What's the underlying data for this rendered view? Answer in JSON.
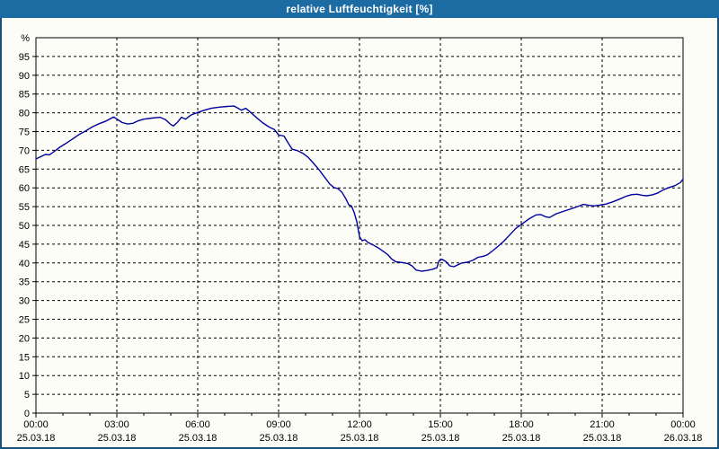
{
  "window": {
    "title": "relative Luftfeuchtigkeit [%]",
    "title_bar_color": "#1d6ba3",
    "border_color": "#17517c",
    "background_color": "#fcfdf7"
  },
  "chart_data": {
    "type": "line",
    "title": "relative Luftfeuchtigkeit [%]",
    "ylabel": "%",
    "ylim": [
      0,
      100
    ],
    "y_tick_step": 5,
    "y_tick_labels": [
      "0",
      "5",
      "10",
      "15",
      "20",
      "25",
      "30",
      "35",
      "40",
      "45",
      "50",
      "55",
      "60",
      "65",
      "70",
      "75",
      "80",
      "85",
      "90",
      "95"
    ],
    "y_top_label": "%",
    "grid": "dashed",
    "grid_color": "#000000",
    "line_color": "#0000a0",
    "x_minor_tick_every_hours": 1,
    "x_major_ticks": [
      {
        "hour": 0,
        "time": "00:00",
        "date": "25.03.18"
      },
      {
        "hour": 3,
        "time": "03:00",
        "date": "25.03.18"
      },
      {
        "hour": 6,
        "time": "06:00",
        "date": "25.03.18"
      },
      {
        "hour": 9,
        "time": "09:00",
        "date": "25.03.18"
      },
      {
        "hour": 12,
        "time": "12:00",
        "date": "25.03.18"
      },
      {
        "hour": 15,
        "time": "15:00",
        "date": "25.03.18"
      },
      {
        "hour": 18,
        "time": "18:00",
        "date": "25.03.18"
      },
      {
        "hour": 21,
        "time": "21:00",
        "date": "25.03.18"
      },
      {
        "hour": 24,
        "time": "00:00",
        "date": "26.03.18"
      }
    ],
    "series": [
      {
        "name": "relative Luftfeuchtigkeit",
        "points": [
          [
            0.0,
            67.7
          ],
          [
            0.2,
            68.4
          ],
          [
            0.35,
            68.9
          ],
          [
            0.5,
            68.8
          ],
          [
            0.7,
            69.8
          ],
          [
            0.9,
            70.9
          ],
          [
            1.1,
            71.8
          ],
          [
            1.35,
            73.0
          ],
          [
            1.6,
            74.2
          ],
          [
            1.85,
            75.2
          ],
          [
            2.1,
            76.3
          ],
          [
            2.35,
            77.1
          ],
          [
            2.6,
            77.8
          ],
          [
            2.88,
            78.9
          ],
          [
            3.05,
            78.1
          ],
          [
            3.2,
            77.4
          ],
          [
            3.4,
            77.0
          ],
          [
            3.6,
            77.2
          ],
          [
            3.8,
            77.9
          ],
          [
            4.0,
            78.3
          ],
          [
            4.3,
            78.6
          ],
          [
            4.6,
            78.8
          ],
          [
            4.8,
            78.2
          ],
          [
            5.0,
            76.9
          ],
          [
            5.1,
            76.5
          ],
          [
            5.25,
            77.5
          ],
          [
            5.4,
            78.8
          ],
          [
            5.55,
            78.3
          ],
          [
            5.75,
            79.4
          ],
          [
            6.0,
            80.1
          ],
          [
            6.25,
            80.7
          ],
          [
            6.5,
            81.2
          ],
          [
            6.8,
            81.5
          ],
          [
            7.1,
            81.7
          ],
          [
            7.35,
            81.8
          ],
          [
            7.5,
            81.2
          ],
          [
            7.62,
            80.7
          ],
          [
            7.78,
            81.2
          ],
          [
            7.95,
            80.2
          ],
          [
            8.15,
            78.9
          ],
          [
            8.4,
            77.4
          ],
          [
            8.65,
            76.2
          ],
          [
            8.85,
            75.5
          ],
          [
            9.0,
            74.1
          ],
          [
            9.2,
            73.8
          ],
          [
            9.35,
            72.0
          ],
          [
            9.5,
            70.3
          ],
          [
            9.7,
            69.9
          ],
          [
            9.9,
            69.2
          ],
          [
            10.1,
            68.1
          ],
          [
            10.3,
            66.5
          ],
          [
            10.5,
            64.8
          ],
          [
            10.7,
            62.9
          ],
          [
            10.9,
            61.0
          ],
          [
            11.05,
            60.1
          ],
          [
            11.2,
            59.8
          ],
          [
            11.35,
            58.8
          ],
          [
            11.5,
            57.0
          ],
          [
            11.6,
            55.5
          ],
          [
            11.7,
            55.2
          ],
          [
            11.8,
            53.5
          ],
          [
            11.9,
            51.0
          ],
          [
            12.0,
            47.0
          ],
          [
            12.1,
            45.9
          ],
          [
            12.2,
            46.2
          ],
          [
            12.3,
            45.5
          ],
          [
            12.5,
            44.8
          ],
          [
            12.7,
            44.0
          ],
          [
            12.9,
            43.0
          ],
          [
            13.05,
            42.2
          ],
          [
            13.2,
            41.0
          ],
          [
            13.35,
            40.3
          ],
          [
            13.6,
            40.1
          ],
          [
            13.8,
            39.8
          ],
          [
            13.95,
            39.2
          ],
          [
            14.1,
            38.1
          ],
          [
            14.3,
            37.8
          ],
          [
            14.5,
            38.0
          ],
          [
            14.7,
            38.3
          ],
          [
            14.87,
            38.7
          ],
          [
            14.95,
            40.6
          ],
          [
            15.05,
            41.0
          ],
          [
            15.2,
            40.4
          ],
          [
            15.35,
            39.2
          ],
          [
            15.5,
            39.0
          ],
          [
            15.65,
            39.5
          ],
          [
            15.8,
            40.0
          ],
          [
            16.0,
            40.2
          ],
          [
            16.2,
            40.7
          ],
          [
            16.4,
            41.5
          ],
          [
            16.6,
            41.8
          ],
          [
            16.75,
            42.2
          ],
          [
            16.95,
            43.3
          ],
          [
            17.15,
            44.5
          ],
          [
            17.35,
            45.8
          ],
          [
            17.55,
            47.3
          ],
          [
            17.8,
            49.2
          ],
          [
            18.05,
            50.5
          ],
          [
            18.3,
            51.8
          ],
          [
            18.55,
            52.8
          ],
          [
            18.72,
            52.9
          ],
          [
            18.9,
            52.3
          ],
          [
            19.05,
            52.1
          ],
          [
            19.3,
            53.1
          ],
          [
            19.55,
            53.7
          ],
          [
            19.8,
            54.3
          ],
          [
            20.05,
            54.9
          ],
          [
            20.3,
            55.6
          ],
          [
            20.55,
            55.3
          ],
          [
            20.7,
            55.2
          ],
          [
            20.9,
            55.4
          ],
          [
            21.15,
            55.7
          ],
          [
            21.4,
            56.3
          ],
          [
            21.65,
            57.0
          ],
          [
            21.9,
            57.8
          ],
          [
            22.1,
            58.2
          ],
          [
            22.3,
            58.3
          ],
          [
            22.5,
            58.0
          ],
          [
            22.65,
            57.9
          ],
          [
            22.85,
            58.1
          ],
          [
            23.05,
            58.6
          ],
          [
            23.25,
            59.4
          ],
          [
            23.45,
            60.0
          ],
          [
            23.7,
            60.6
          ],
          [
            23.9,
            61.4
          ],
          [
            24.0,
            62.3
          ]
        ]
      }
    ]
  }
}
